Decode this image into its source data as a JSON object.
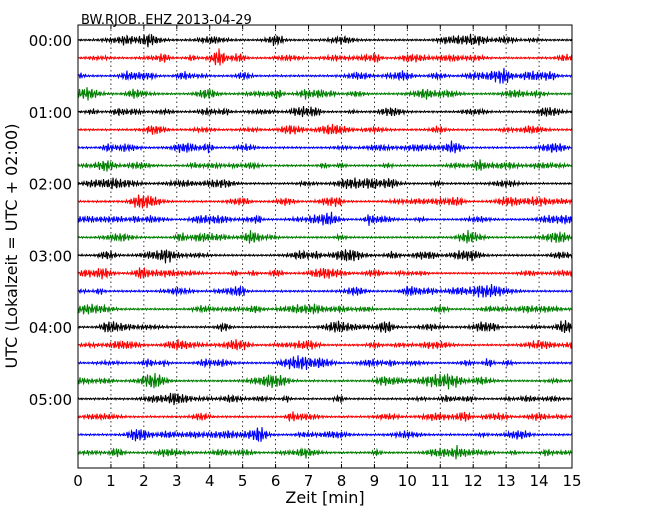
{
  "chart_data": {
    "type": "line",
    "title": "BW.RJOB..EHZ 2013-04-29",
    "xlabel": "Zeit  [min]",
    "ylabel": "UTC (Lokalzeit = UTC + 02:00)",
    "xlim": [
      0,
      15
    ],
    "x_ticks": [
      "0",
      "1",
      "2",
      "3",
      "4",
      "5",
      "6",
      "7",
      "8",
      "9",
      "10",
      "11",
      "12",
      "13",
      "14",
      "15"
    ],
    "y_ticks": [
      "00:00",
      "01:00",
      "02:00",
      "03:00",
      "04:00",
      "05:00"
    ],
    "trace_interval_min": 15,
    "trace_count": 24,
    "vertical_grid": "dotted",
    "trace_colors": [
      "#000000",
      "#ff0000",
      "#0000ff",
      "#008000"
    ],
    "trace_start_times": [
      "00:00",
      "00:15",
      "00:30",
      "00:45",
      "01:00",
      "01:15",
      "01:30",
      "01:45",
      "02:00",
      "02:15",
      "02:30",
      "02:45",
      "03:00",
      "03:15",
      "03:30",
      "03:45",
      "04:00",
      "04:15",
      "04:30",
      "04:45",
      "05:00",
      "05:15",
      "05:30",
      "05:45"
    ]
  }
}
